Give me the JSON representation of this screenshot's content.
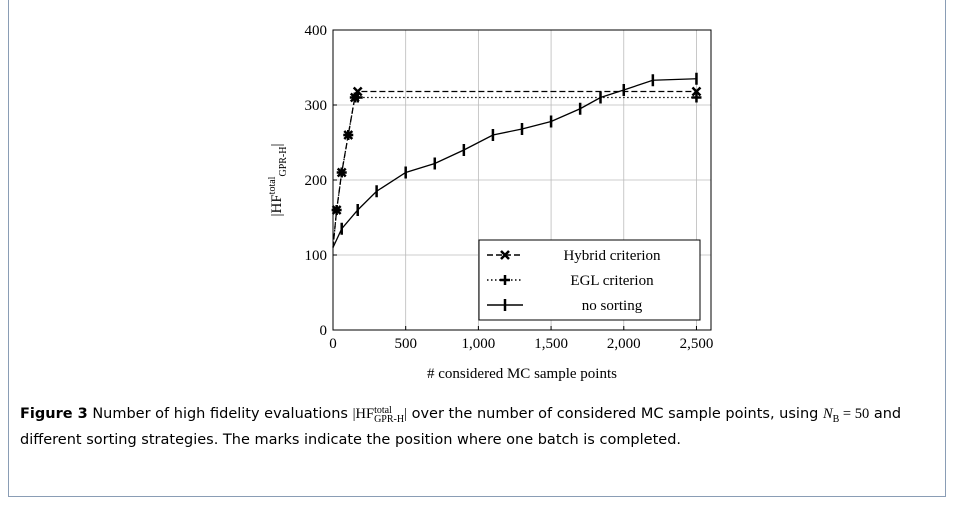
{
  "chart_data": {
    "type": "line",
    "xlabel": "# considered MC sample points",
    "ylabel": {
      "base": "|HF",
      "sup": "total",
      "sub": "GPR-H",
      "end": "|"
    },
    "xlim": [
      0,
      2600
    ],
    "ylim": [
      0,
      400
    ],
    "xticks": [
      0,
      500,
      {
        "value": 1000,
        "label": "1,000"
      },
      {
        "value": 1500,
        "label": "1,500"
      },
      {
        "value": 2000,
        "label": "2,000"
      },
      {
        "value": 2500,
        "label": "2,500"
      }
    ],
    "yticks": [
      0,
      100,
      200,
      300,
      400
    ],
    "grid": true,
    "legend": "lower right",
    "series": [
      {
        "name": "Hybrid criterion",
        "color": "#000000",
        "dash": "dashed",
        "marker": "x",
        "x": [
          0,
          25,
          60,
          105,
          150,
          170,
          2500
        ],
        "values": [
          110,
          160,
          210,
          260,
          310,
          318,
          318
        ]
      },
      {
        "name": "EGL criterion",
        "color": "#000000",
        "dash": "dotted",
        "marker": "+",
        "x": [
          0,
          25,
          60,
          105,
          150,
          170,
          2500
        ],
        "values": [
          110,
          160,
          210,
          260,
          310,
          310,
          310
        ]
      },
      {
        "name": "no sorting",
        "color": "#000000",
        "dash": "solid",
        "marker": "|",
        "x": [
          0,
          60,
          170,
          300,
          500,
          700,
          900,
          1100,
          1300,
          1500,
          1700,
          1840,
          2000,
          2200,
          2500
        ],
        "values": [
          110,
          135,
          160,
          185,
          210,
          222,
          240,
          260,
          268,
          278,
          295,
          310,
          320,
          333,
          335
        ]
      }
    ]
  },
  "caption": {
    "label": "Figure 3",
    "text1": "Number of high fidelity evaluations",
    "math1": {
      "base": "|HF",
      "sup": "total",
      "sub": "GPR-H",
      "end": "|"
    },
    "text2": "over the number of considered MC sample points, using",
    "math2": {
      "base": "N",
      "sub": "B",
      "end": " = 50"
    },
    "text3": "and different sorting strategies. The marks indicate the position where one batch is completed."
  }
}
